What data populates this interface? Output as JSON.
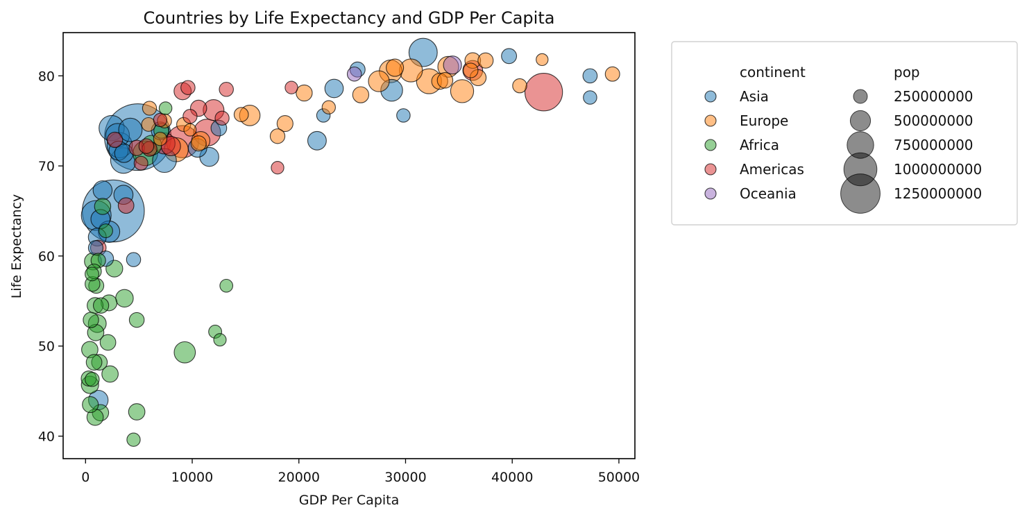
{
  "chart_data": {
    "type": "scatter",
    "title": "Countries by Life Expectancy and GDP Per Capita",
    "xlabel": "GDP Per Capita",
    "ylabel": "Life Expectancy",
    "xlim": [
      -2100,
      51500
    ],
    "ylim": [
      37.5,
      84.8
    ],
    "xticks": [
      0,
      10000,
      20000,
      30000,
      40000,
      50000
    ],
    "yticks": [
      40,
      50,
      60,
      70,
      80
    ],
    "grid": false,
    "marker_alpha": 0.5,
    "marker_edge_color": "#000000",
    "legend": {
      "placement": "outside-right",
      "hue_title": "continent",
      "size_title": "pop",
      "size_values": [
        250000000,
        500000000,
        750000000,
        1000000000,
        1250000000
      ],
      "size_labels": [
        "250000000",
        "500000000",
        "750000000",
        "1000000000",
        "1250000000"
      ]
    },
    "series": [
      {
        "name": "Asia",
        "color": "#1f77b4",
        "points": [
          {
            "x": 31650,
            "y": 82.6,
            "pop": 127000000
          },
          {
            "x": 39700,
            "y": 82.2,
            "pop": 6980000
          },
          {
            "x": 25500,
            "y": 80.7,
            "pop": 7000000
          },
          {
            "x": 47300,
            "y": 80.0,
            "pop": 4500000
          },
          {
            "x": 47300,
            "y": 77.6,
            "pop": 2500000
          },
          {
            "x": 28700,
            "y": 78.4,
            "pop": 49000000
          },
          {
            "x": 23300,
            "y": 78.6,
            "pop": 23000000
          },
          {
            "x": 22300,
            "y": 75.6,
            "pop": 2500000
          },
          {
            "x": 29800,
            "y": 75.6,
            "pop": 2500000
          },
          {
            "x": 21700,
            "y": 72.8,
            "pop": 24000000
          },
          {
            "x": 12500,
            "y": 74.2,
            "pop": 9000000
          },
          {
            "x": 11600,
            "y": 71.0,
            "pop": 27000000
          },
          {
            "x": 10500,
            "y": 72.0,
            "pop": 24000000
          },
          {
            "x": 7400,
            "y": 70.6,
            "pop": 70000000
          },
          {
            "x": 7000,
            "y": 73.9,
            "pop": 19000000
          },
          {
            "x": 4900,
            "y": 73.2,
            "pop": 1320000000
          },
          {
            "x": 4200,
            "y": 74.0,
            "pop": 65000000
          },
          {
            "x": 3200,
            "y": 72.3,
            "pop": 85000000
          },
          {
            "x": 2450,
            "y": 74.2,
            "pop": 86000000
          },
          {
            "x": 3550,
            "y": 70.6,
            "pop": 91000000
          },
          {
            "x": 3000,
            "y": 73.4,
            "pop": 69000000
          },
          {
            "x": 3100,
            "y": 71.7,
            "pop": 28000000
          },
          {
            "x": 3600,
            "y": 71.4,
            "pop": 23000000
          },
          {
            "x": 2600,
            "y": 65.0,
            "pop": 1110000000
          },
          {
            "x": 3550,
            "y": 66.8,
            "pop": 28000000
          },
          {
            "x": 1600,
            "y": 67.3,
            "pop": 27000000
          },
          {
            "x": 1400,
            "y": 64.1,
            "pop": 28000000
          },
          {
            "x": 1100,
            "y": 62.1,
            "pop": 20000000
          },
          {
            "x": 2200,
            "y": 62.7,
            "pop": 47000000
          },
          {
            "x": 1900,
            "y": 59.7,
            "pop": 8000000
          },
          {
            "x": 4500,
            "y": 59.6,
            "pop": 4000000
          },
          {
            "x": 950,
            "y": 60.9,
            "pop": 5000000
          },
          {
            "x": 1000,
            "y": 64.5,
            "pop": 150000000
          },
          {
            "x": 1200,
            "y": 44.0,
            "pop": 31000000
          }
        ]
      },
      {
        "name": "Europe",
        "color": "#ff7f0e",
        "points": [
          {
            "x": 49400,
            "y": 80.2,
            "pop": 4600000
          },
          {
            "x": 42800,
            "y": 81.8,
            "pop": 300000
          },
          {
            "x": 40700,
            "y": 78.9,
            "pop": 4100000
          },
          {
            "x": 37500,
            "y": 81.7,
            "pop": 7500000
          },
          {
            "x": 36800,
            "y": 79.8,
            "pop": 10400000
          },
          {
            "x": 36300,
            "y": 81.7,
            "pop": 9000000
          },
          {
            "x": 36100,
            "y": 80.6,
            "pop": 5500000
          },
          {
            "x": 35300,
            "y": 78.3,
            "pop": 61000000
          },
          {
            "x": 34000,
            "y": 81.0,
            "pop": 40000000
          },
          {
            "x": 33700,
            "y": 79.5,
            "pop": 8200000
          },
          {
            "x": 33200,
            "y": 79.4,
            "pop": 10700000
          },
          {
            "x": 32200,
            "y": 79.4,
            "pop": 82000000
          },
          {
            "x": 30500,
            "y": 80.6,
            "pop": 61000000
          },
          {
            "x": 29000,
            "y": 80.9,
            "pop": 16500000
          },
          {
            "x": 28600,
            "y": 80.5,
            "pop": 58000000
          },
          {
            "x": 27500,
            "y": 79.4,
            "pop": 40000000
          },
          {
            "x": 25800,
            "y": 77.9,
            "pop": 10600000
          },
          {
            "x": 22800,
            "y": 76.5,
            "pop": 2000000
          },
          {
            "x": 20500,
            "y": 78.1,
            "pop": 10600000
          },
          {
            "x": 18700,
            "y": 74.7,
            "pop": 10200000
          },
          {
            "x": 18000,
            "y": 73.3,
            "pop": 5400000
          },
          {
            "x": 15400,
            "y": 75.6,
            "pop": 38500000
          },
          {
            "x": 14600,
            "y": 75.7,
            "pop": 4500000
          },
          {
            "x": 10800,
            "y": 72.8,
            "pop": 22000000
          },
          {
            "x": 10600,
            "y": 72.5,
            "pop": 7300000
          },
          {
            "x": 9800,
            "y": 74.0,
            "pop": 600000
          },
          {
            "x": 9200,
            "y": 74.6,
            "pop": 3600000
          },
          {
            "x": 8500,
            "y": 71.8,
            "pop": 71000000
          },
          {
            "x": 7400,
            "y": 75.0,
            "pop": 4000000
          },
          {
            "x": 7000,
            "y": 73.0,
            "pop": 2000000
          },
          {
            "x": 6000,
            "y": 76.4,
            "pop": 3600000
          },
          {
            "x": 5900,
            "y": 74.6,
            "pop": 3000000
          }
        ]
      },
      {
        "name": "Africa",
        "color": "#2ca02c",
        "points": [
          {
            "x": 13200,
            "y": 56.7,
            "pop": 1400000
          },
          {
            "x": 12150,
            "y": 51.6,
            "pop": 1600000
          },
          {
            "x": 12600,
            "y": 50.7,
            "pop": 800000
          },
          {
            "x": 9300,
            "y": 49.3,
            "pop": 44000000
          },
          {
            "x": 7500,
            "y": 76.4,
            "pop": 1200000
          },
          {
            "x": 7100,
            "y": 73.9,
            "pop": 6000000
          },
          {
            "x": 6200,
            "y": 72.3,
            "pop": 33000000
          },
          {
            "x": 5600,
            "y": 71.4,
            "pop": 80000000
          },
          {
            "x": 4800,
            "y": 52.9,
            "pop": 6000000
          },
          {
            "x": 4800,
            "y": 42.7,
            "pop": 12000000
          },
          {
            "x": 4500,
            "y": 39.6,
            "pop": 2000000
          },
          {
            "x": 3650,
            "y": 55.3,
            "pop": 18000000
          },
          {
            "x": 2700,
            "y": 58.6,
            "pop": 14000000
          },
          {
            "x": 2200,
            "y": 54.8,
            "pop": 10000000
          },
          {
            "x": 2100,
            "y": 50.4,
            "pop": 9000000
          },
          {
            "x": 2300,
            "y": 46.9,
            "pop": 12000000
          },
          {
            "x": 1900,
            "y": 62.8,
            "pop": 3000000
          },
          {
            "x": 1600,
            "y": 65.5,
            "pop": 11000000
          },
          {
            "x": 1450,
            "y": 54.5,
            "pop": 8000000
          },
          {
            "x": 1400,
            "y": 42.6,
            "pop": 12000000
          },
          {
            "x": 1300,
            "y": 48.2,
            "pop": 9000000
          },
          {
            "x": 1200,
            "y": 59.5,
            "pop": 5000000
          },
          {
            "x": 1100,
            "y": 52.5,
            "pop": 20000000
          },
          {
            "x": 1000,
            "y": 56.7,
            "pop": 7000000
          },
          {
            "x": 950,
            "y": 51.5,
            "pop": 12000000
          },
          {
            "x": 900,
            "y": 54.5,
            "pop": 10000000
          },
          {
            "x": 900,
            "y": 42.1,
            "pop": 12000000
          },
          {
            "x": 800,
            "y": 58.3,
            "pop": 5000000
          },
          {
            "x": 800,
            "y": 48.2,
            "pop": 9000000
          },
          {
            "x": 700,
            "y": 59.4,
            "pop": 15000000
          },
          {
            "x": 650,
            "y": 56.9,
            "pop": 6000000
          },
          {
            "x": 620,
            "y": 46.3,
            "pop": 4000000
          },
          {
            "x": 600,
            "y": 58.0,
            "pop": 3000000
          },
          {
            "x": 500,
            "y": 52.9,
            "pop": 8000000
          },
          {
            "x": 450,
            "y": 43.5,
            "pop": 10000000
          },
          {
            "x": 420,
            "y": 45.7,
            "pop": 17000000
          },
          {
            "x": 400,
            "y": 49.6,
            "pop": 12000000
          },
          {
            "x": 300,
            "y": 46.4,
            "pop": 7000000
          }
        ]
      },
      {
        "name": "Americas",
        "color": "#d62728",
        "points": [
          {
            "x": 42950,
            "y": 78.2,
            "pop": 301000000
          },
          {
            "x": 36300,
            "y": 80.6,
            "pop": 33000000
          },
          {
            "x": 19300,
            "y": 78.7,
            "pop": 1000000
          },
          {
            "x": 18000,
            "y": 69.8,
            "pop": 1000000
          },
          {
            "x": 13200,
            "y": 78.5,
            "pop": 4000000
          },
          {
            "x": 12800,
            "y": 75.3,
            "pop": 3500000
          },
          {
            "x": 12000,
            "y": 76.2,
            "pop": 40000000
          },
          {
            "x": 11400,
            "y": 73.7,
            "pop": 108000000
          },
          {
            "x": 10600,
            "y": 76.4,
            "pop": 11000000
          },
          {
            "x": 9800,
            "y": 75.5,
            "pop": 3500000
          },
          {
            "x": 9600,
            "y": 78.7,
            "pop": 4100000
          },
          {
            "x": 9100,
            "y": 78.3,
            "pop": 16000000
          },
          {
            "x": 9100,
            "y": 72.7,
            "pop": 190000000
          },
          {
            "x": 8000,
            "y": 72.2,
            "pop": 29000000
          },
          {
            "x": 7400,
            "y": 72.5,
            "pop": 44000000
          },
          {
            "x": 7000,
            "y": 75.1,
            "pop": 2000000
          },
          {
            "x": 6000,
            "y": 71.9,
            "pop": 6000000
          },
          {
            "x": 5200,
            "y": 70.3,
            "pop": 3000000
          },
          {
            "x": 5700,
            "y": 72.2,
            "pop": 6000000
          },
          {
            "x": 4800,
            "y": 72.0,
            "pop": 8000000
          },
          {
            "x": 3800,
            "y": 65.6,
            "pop": 9000000
          },
          {
            "x": 2750,
            "y": 72.9,
            "pop": 8000000
          },
          {
            "x": 1200,
            "y": 60.9,
            "pop": 8500000
          }
        ]
      },
      {
        "name": "Oceania",
        "color": "#9467bd",
        "points": [
          {
            "x": 34400,
            "y": 81.2,
            "pop": 20400000
          },
          {
            "x": 25200,
            "y": 80.2,
            "pop": 4100000
          }
        ]
      }
    ]
  }
}
